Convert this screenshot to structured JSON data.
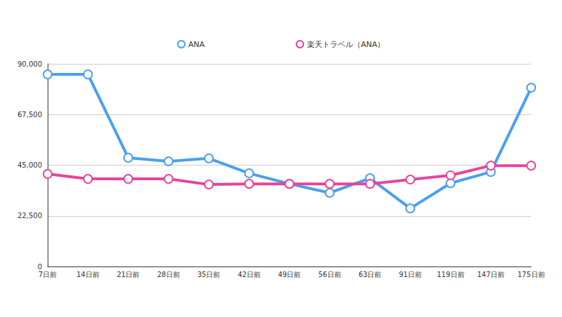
{
  "chart_data": {
    "type": "line",
    "categories": [
      "7日前",
      "14日前",
      "21日前",
      "28日前",
      "35日前",
      "42日前",
      "49日前",
      "56日前",
      "63日前",
      "91日前",
      "119日前",
      "147日前",
      "175日前"
    ],
    "series": [
      {
        "name": "ANA",
        "color": "#4a9ff0",
        "values": [
          85300,
          85300,
          48300,
          46700,
          48000,
          41400,
          36700,
          32700,
          39200,
          25800,
          37000,
          42000,
          79400
        ]
      },
      {
        "name": "楽天トラベル（ANA）",
        "color": "#e8449a",
        "values": [
          41100,
          38900,
          38900,
          38900,
          36400,
          36700,
          36700,
          36700,
          36700,
          38600,
          40500,
          44800,
          44800
        ]
      }
    ],
    "ylim": [
      0,
      90000
    ],
    "yticks": [
      0,
      {
        "value": 22500,
        "label": "22,500"
      },
      {
        "value": 45000,
        "label": "45,000"
      },
      {
        "value": 67500,
        "label": "67,500"
      },
      {
        "value": 90000,
        "label": "90,000"
      }
    ],
    "grid": true,
    "legend": "top",
    "marker": "circle",
    "line_style": "solid"
  }
}
